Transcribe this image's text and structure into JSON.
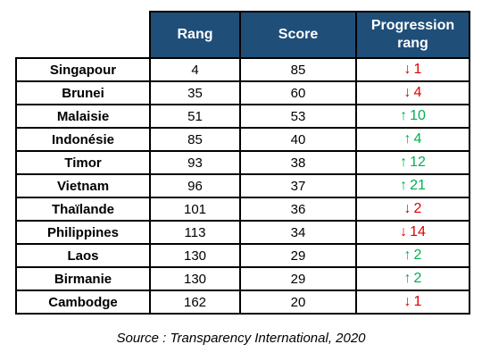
{
  "table": {
    "headers": {
      "rank": "Rang",
      "score": "Score",
      "progression_line1": "Progression",
      "progression_line2": "rang"
    },
    "rows": [
      {
        "country": "Singapour",
        "rank": "4",
        "score": "85",
        "direction": "down",
        "arrow": "↓",
        "change": "1",
        "color": "#e00000"
      },
      {
        "country": "Brunei",
        "rank": "35",
        "score": "60",
        "direction": "down",
        "arrow": "↓",
        "change": "4",
        "color": "#e00000"
      },
      {
        "country": "Malaisie",
        "rank": "51",
        "score": "53",
        "direction": "up",
        "arrow": "↑",
        "change": "10",
        "color": "#00b050"
      },
      {
        "country": "Indonésie",
        "rank": "85",
        "score": "40",
        "direction": "up",
        "arrow": "↑",
        "change": "4",
        "color": "#00b050"
      },
      {
        "country": "Timor",
        "rank": "93",
        "score": "38",
        "direction": "up",
        "arrow": "↑",
        "change": "12",
        "color": "#00b050"
      },
      {
        "country": "Vietnam",
        "rank": "96",
        "score": "37",
        "direction": "up",
        "arrow": "↑",
        "change": "21",
        "color": "#00b050"
      },
      {
        "country": "Thaïlande",
        "rank": "101",
        "score": "36",
        "direction": "down",
        "arrow": "↓",
        "change": "2",
        "color": "#e00000"
      },
      {
        "country": "Philippines",
        "rank": "113",
        "score": "34",
        "direction": "down",
        "arrow": "↓",
        "change": "14",
        "color": "#e00000"
      },
      {
        "country": "Laos",
        "rank": "130",
        "score": "29",
        "direction": "up",
        "arrow": "↑",
        "change": "2",
        "color": "#00b050"
      },
      {
        "country": "Birmanie",
        "rank": "130",
        "score": "29",
        "direction": "up",
        "arrow": "↑",
        "change": "2",
        "color": "#00b050"
      },
      {
        "country": "Cambodge",
        "rank": "162",
        "score": "20",
        "direction": "down",
        "arrow": "↓",
        "change": "1",
        "color": "#e00000"
      }
    ]
  },
  "colors": {
    "header_bg": "#1f4e79",
    "header_text": "#ffffff",
    "down": "#e00000",
    "up": "#00b050"
  },
  "source": "Source : Transparency International, 2020"
}
